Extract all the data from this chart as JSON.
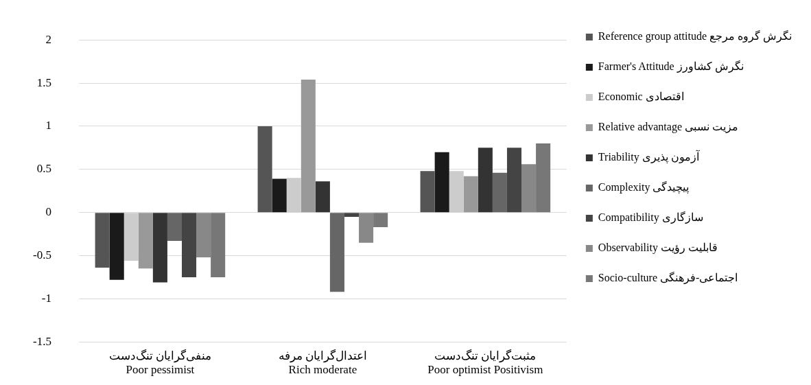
{
  "chart_data": {
    "type": "bar",
    "categories": [
      "منفی‌گرایان تنگ‌دست\nPoor pessimist",
      "اعتدال‌گرایان مرفه\nRich moderate",
      "مثبت‌گرایان تنگ‌دست\nPoor optimist Positivism"
    ],
    "series": [
      {
        "name": "Reference group attitude نگرش گروه مرجع",
        "color": "#555555",
        "values": [
          -0.64,
          1.0,
          0.48
        ]
      },
      {
        "name": "Farmer's Attitude نگرش کشاورز",
        "color": "#1a1a1a",
        "values": [
          -0.78,
          0.39,
          0.7
        ]
      },
      {
        "name": "Economic اقتصادی",
        "color": "#cccccc",
        "values": [
          -0.56,
          0.4,
          0.48
        ]
      },
      {
        "name": "Relative advantage مزیت نسبی",
        "color": "#999999",
        "values": [
          -0.65,
          1.54,
          0.42
        ]
      },
      {
        "name": "Triability آزمون پذیری",
        "color": "#333333",
        "values": [
          -0.81,
          0.36,
          0.75
        ]
      },
      {
        "name": "Complexity پیچیدگی",
        "color": "#666666",
        "values": [
          -0.33,
          -0.92,
          0.46
        ]
      },
      {
        "name": "Compatibility سازگاری",
        "color": "#444444",
        "values": [
          -0.75,
          -0.05,
          0.75
        ]
      },
      {
        "name": "Observability قابلیت رؤیت",
        "color": "#888888",
        "values": [
          -0.52,
          -0.35,
          0.56
        ]
      },
      {
        "name": "Socio-culture اجتماعی-فرهنگی",
        "color": "#777777",
        "values": [
          -0.75,
          -0.17,
          0.8
        ]
      }
    ],
    "ylim": [
      -1.5,
      2
    ],
    "yticks": [
      -1.5,
      -1,
      -0.5,
      0,
      0.5,
      1,
      1.5,
      2
    ],
    "grid": "y",
    "legend": "right"
  }
}
